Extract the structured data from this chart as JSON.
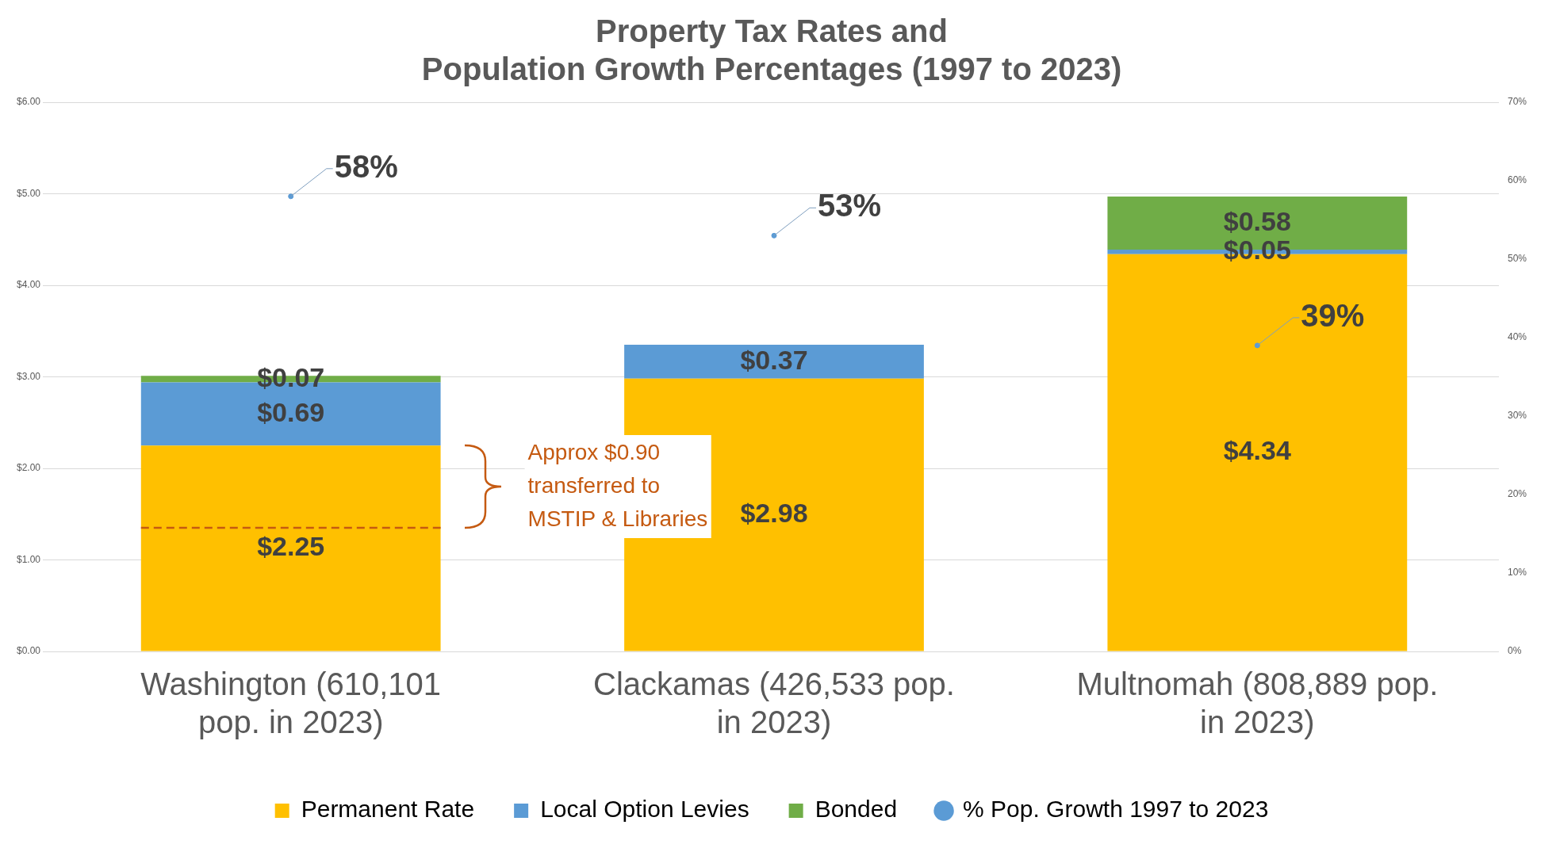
{
  "chart_data": {
    "type": "bar",
    "title": "Property Tax Rates and\nPopulation Growth Percentages (1997 to 2023)",
    "categories": [
      "Washington (610,101 pop. in 2023)",
      "Clackamas (426,533 pop. in 2023)",
      "Multnomah (808,889 pop. in 2023)"
    ],
    "stacked": true,
    "series": [
      {
        "name": "Permanent Rate",
        "color": "#ffc000",
        "values": [
          2.25,
          2.98,
          4.34
        ],
        "value_labels": [
          "$2.25",
          "$2.98",
          "$4.34"
        ]
      },
      {
        "name": "Local Option Levies",
        "color": "#5b9bd5",
        "values": [
          0.69,
          0.37,
          0.05
        ],
        "value_labels": [
          "$0.69",
          "$0.37",
          "$0.05"
        ]
      },
      {
        "name": "Bonded",
        "color": "#70ad47",
        "values": [
          0.07,
          null,
          0.58
        ],
        "value_labels": [
          "$0.07",
          null,
          "$0.58"
        ]
      },
      {
        "name": "% Pop. Growth 1997 to 2023",
        "type": "scatter",
        "axis": "y2",
        "color": "#5b9bd5",
        "marker": "circle",
        "values": [
          58,
          53,
          39
        ],
        "value_labels": [
          "58%",
          "53%",
          "39%"
        ]
      }
    ],
    "ylim": [
      0,
      6
    ],
    "yticks": [
      {
        "value": 0,
        "label": "$0.00"
      },
      {
        "value": 1,
        "label": "$1.00"
      },
      {
        "value": 2,
        "label": "$2.00"
      },
      {
        "value": 3,
        "label": "$3.00"
      },
      {
        "value": 4,
        "label": "$4.00"
      },
      {
        "value": 5,
        "label": "$5.00"
      },
      {
        "value": 6,
        "label": "$6.00"
      }
    ],
    "y2lim": [
      0,
      70
    ],
    "y2ticks": [
      {
        "value": 0,
        "label": "0%"
      },
      {
        "value": 10,
        "label": "10%"
      },
      {
        "value": 20,
        "label": "20%"
      },
      {
        "value": 30,
        "label": "30%"
      },
      {
        "value": 40,
        "label": "40%"
      },
      {
        "value": 50,
        "label": "50%"
      },
      {
        "value": 60,
        "label": "60%"
      },
      {
        "value": 70,
        "label": "70%"
      }
    ],
    "grid": "y",
    "legend": "bottom",
    "ref_lines": [
      {
        "axis": "y",
        "value": 1.35,
        "color": "#c55a11",
        "line_style": "dashed"
      }
    ],
    "annotations": [
      "Approx $0.90\ntransferred to\nMSTIP & Libraries"
    ]
  }
}
